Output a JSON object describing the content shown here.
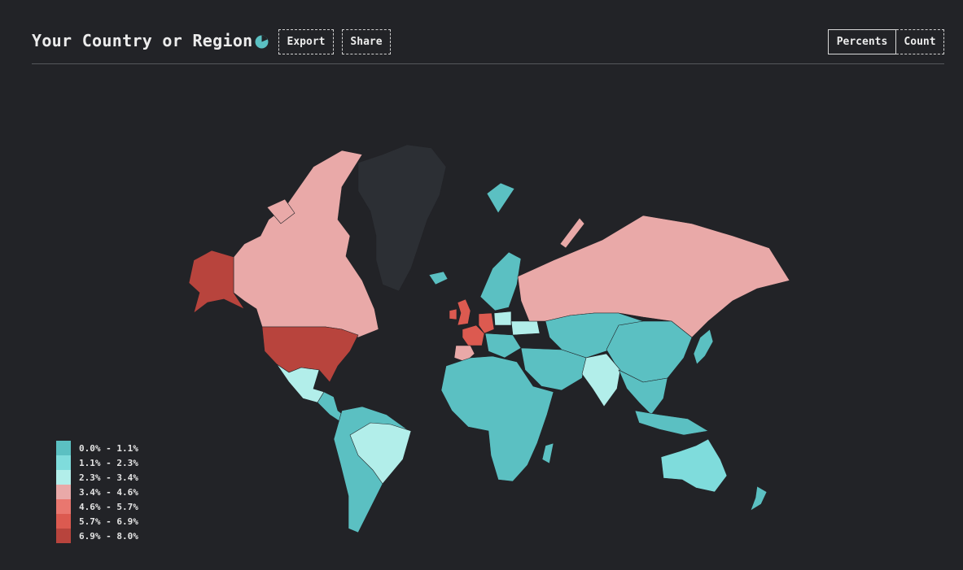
{
  "header": {
    "title": "Your Country or Region",
    "export_label": "Export",
    "share_label": "Share",
    "toggle": {
      "percents_label": "Percents",
      "count_label": "Count",
      "selected": "Percents"
    }
  },
  "colors": {
    "background": "#222327",
    "no_data": "#2c2f34",
    "scale": [
      "#5bc0c2",
      "#7fdcdc",
      "#b2eeea",
      "#e9a9a8",
      "#e9776f",
      "#dc5a50",
      "#b8443d"
    ]
  },
  "legend": {
    "items": [
      {
        "label": "0.0% - 1.1%"
      },
      {
        "label": "1.1% - 2.3%"
      },
      {
        "label": "2.3% - 3.4%"
      },
      {
        "label": "3.4% - 4.6%"
      },
      {
        "label": "4.6% - 5.7%"
      },
      {
        "label": "5.7% - 6.9%"
      },
      {
        "label": "6.9% - 8.0%"
      }
    ]
  },
  "regions": [
    {
      "name": "Canada",
      "bin": 3
    },
    {
      "name": "Alaska",
      "bin": 6
    },
    {
      "name": "United States",
      "bin": 6
    },
    {
      "name": "Greenland",
      "bin": null
    },
    {
      "name": "Mexico",
      "bin": 2
    },
    {
      "name": "Central America",
      "bin": 0
    },
    {
      "name": "South America",
      "bin": 0
    },
    {
      "name": "Brazil",
      "bin": 2
    },
    {
      "name": "United Kingdom",
      "bin": 5
    },
    {
      "name": "Ireland",
      "bin": 5
    },
    {
      "name": "France",
      "bin": 5
    },
    {
      "name": "Germany",
      "bin": 5
    },
    {
      "name": "Spain & Portugal",
      "bin": 3
    },
    {
      "name": "Nordics",
      "bin": 0
    },
    {
      "name": "Iceland",
      "bin": 0
    },
    {
      "name": "Svalbard",
      "bin": 0
    },
    {
      "name": "Poland",
      "bin": 2
    },
    {
      "name": "Ukraine",
      "bin": 2
    },
    {
      "name": "Eastern Europe",
      "bin": 0
    },
    {
      "name": "Russia",
      "bin": 3
    },
    {
      "name": "Africa",
      "bin": 0
    },
    {
      "name": "Middle East",
      "bin": 0
    },
    {
      "name": "Central Asia",
      "bin": 0
    },
    {
      "name": "China",
      "bin": 0
    },
    {
      "name": "India",
      "bin": 2
    },
    {
      "name": "Southeast Asia",
      "bin": 0
    },
    {
      "name": "Japan",
      "bin": 0
    },
    {
      "name": "Indonesia",
      "bin": 0
    },
    {
      "name": "Australia",
      "bin": 1
    },
    {
      "name": "New Zealand",
      "bin": 0
    }
  ]
}
